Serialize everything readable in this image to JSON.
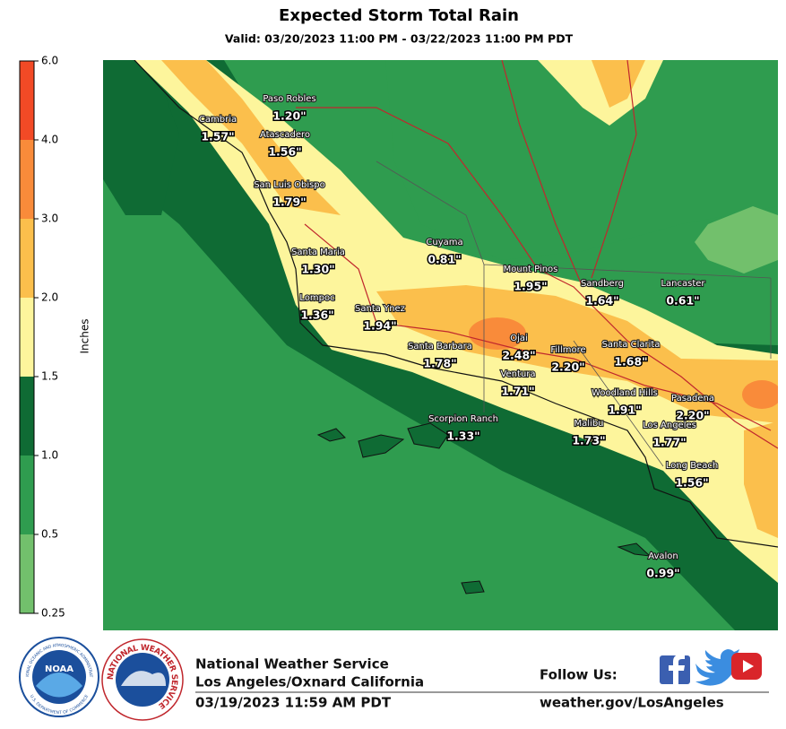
{
  "title": "Expected Storm Total Rain",
  "subtitle": "Valid: 03/20/2023 11:00 PM - 03/22/2023 11:00 PM PDT",
  "legend": {
    "title": "Inches",
    "ticks": [
      "6.0",
      "4.0",
      "3.0",
      "2.0",
      "1.5",
      "1.0",
      "0.5",
      "0.25"
    ],
    "colors": [
      "#f24a26",
      "#f98b3a",
      "#fbbf4c",
      "#fdf59c",
      "#0f6b34",
      "#2f9c4f",
      "#72c06c"
    ]
  },
  "locations": [
    {
      "name": "Paso Robles",
      "value": "1.20\""
    },
    {
      "name": "Cambria",
      "value": "1.57\""
    },
    {
      "name": "Atascadero",
      "value": "1.56\""
    },
    {
      "name": "San Luis Obispo",
      "value": "1.79\""
    },
    {
      "name": "Cuyama",
      "value": "0.81\""
    },
    {
      "name": "Santa Maria",
      "value": "1.30\""
    },
    {
      "name": "Mount Pinos",
      "value": "1.95\""
    },
    {
      "name": "Sandberg",
      "value": "1.64\""
    },
    {
      "name": "Lancaster",
      "value": "0.61\""
    },
    {
      "name": "Lompoc",
      "value": "1.36\""
    },
    {
      "name": "Santa Ynez",
      "value": "1.94\""
    },
    {
      "name": "Santa Barbara",
      "value": "1.78\""
    },
    {
      "name": "Ojai",
      "value": "2.48\""
    },
    {
      "name": "Fillmore",
      "value": "2.20\""
    },
    {
      "name": "Santa Clarita",
      "value": "1.68\""
    },
    {
      "name": "Ventura",
      "value": "1.71\""
    },
    {
      "name": "Woodland Hills",
      "value": "1.91\""
    },
    {
      "name": "Pasadena",
      "value": "2.20\""
    },
    {
      "name": "Scorpion Ranch",
      "value": "1.33\""
    },
    {
      "name": "Malibu",
      "value": "1.73\""
    },
    {
      "name": "Los Angeles",
      "value": "1.77\""
    },
    {
      "name": "Long Beach",
      "value": "1.56\""
    },
    {
      "name": "Avalon",
      "value": "0.99\""
    }
  ],
  "logos": {
    "noaa": "NOAA",
    "noaa_ring": "NATIONAL OCEANIC AND ATMOSPHERIC ADMINISTRATION",
    "noaa_ring_bottom": "U.S. DEPARTMENT OF COMMERCE",
    "nws_ring": "NATIONAL WEATHER SERVICE"
  },
  "footer": {
    "agency": "National Weather Service",
    "office": "Los Angeles/Oxnard California",
    "issued": "03/19/2023 11:59 AM PDT",
    "follow": "Follow Us:",
    "website": "weather.gov/LosAngeles"
  }
}
